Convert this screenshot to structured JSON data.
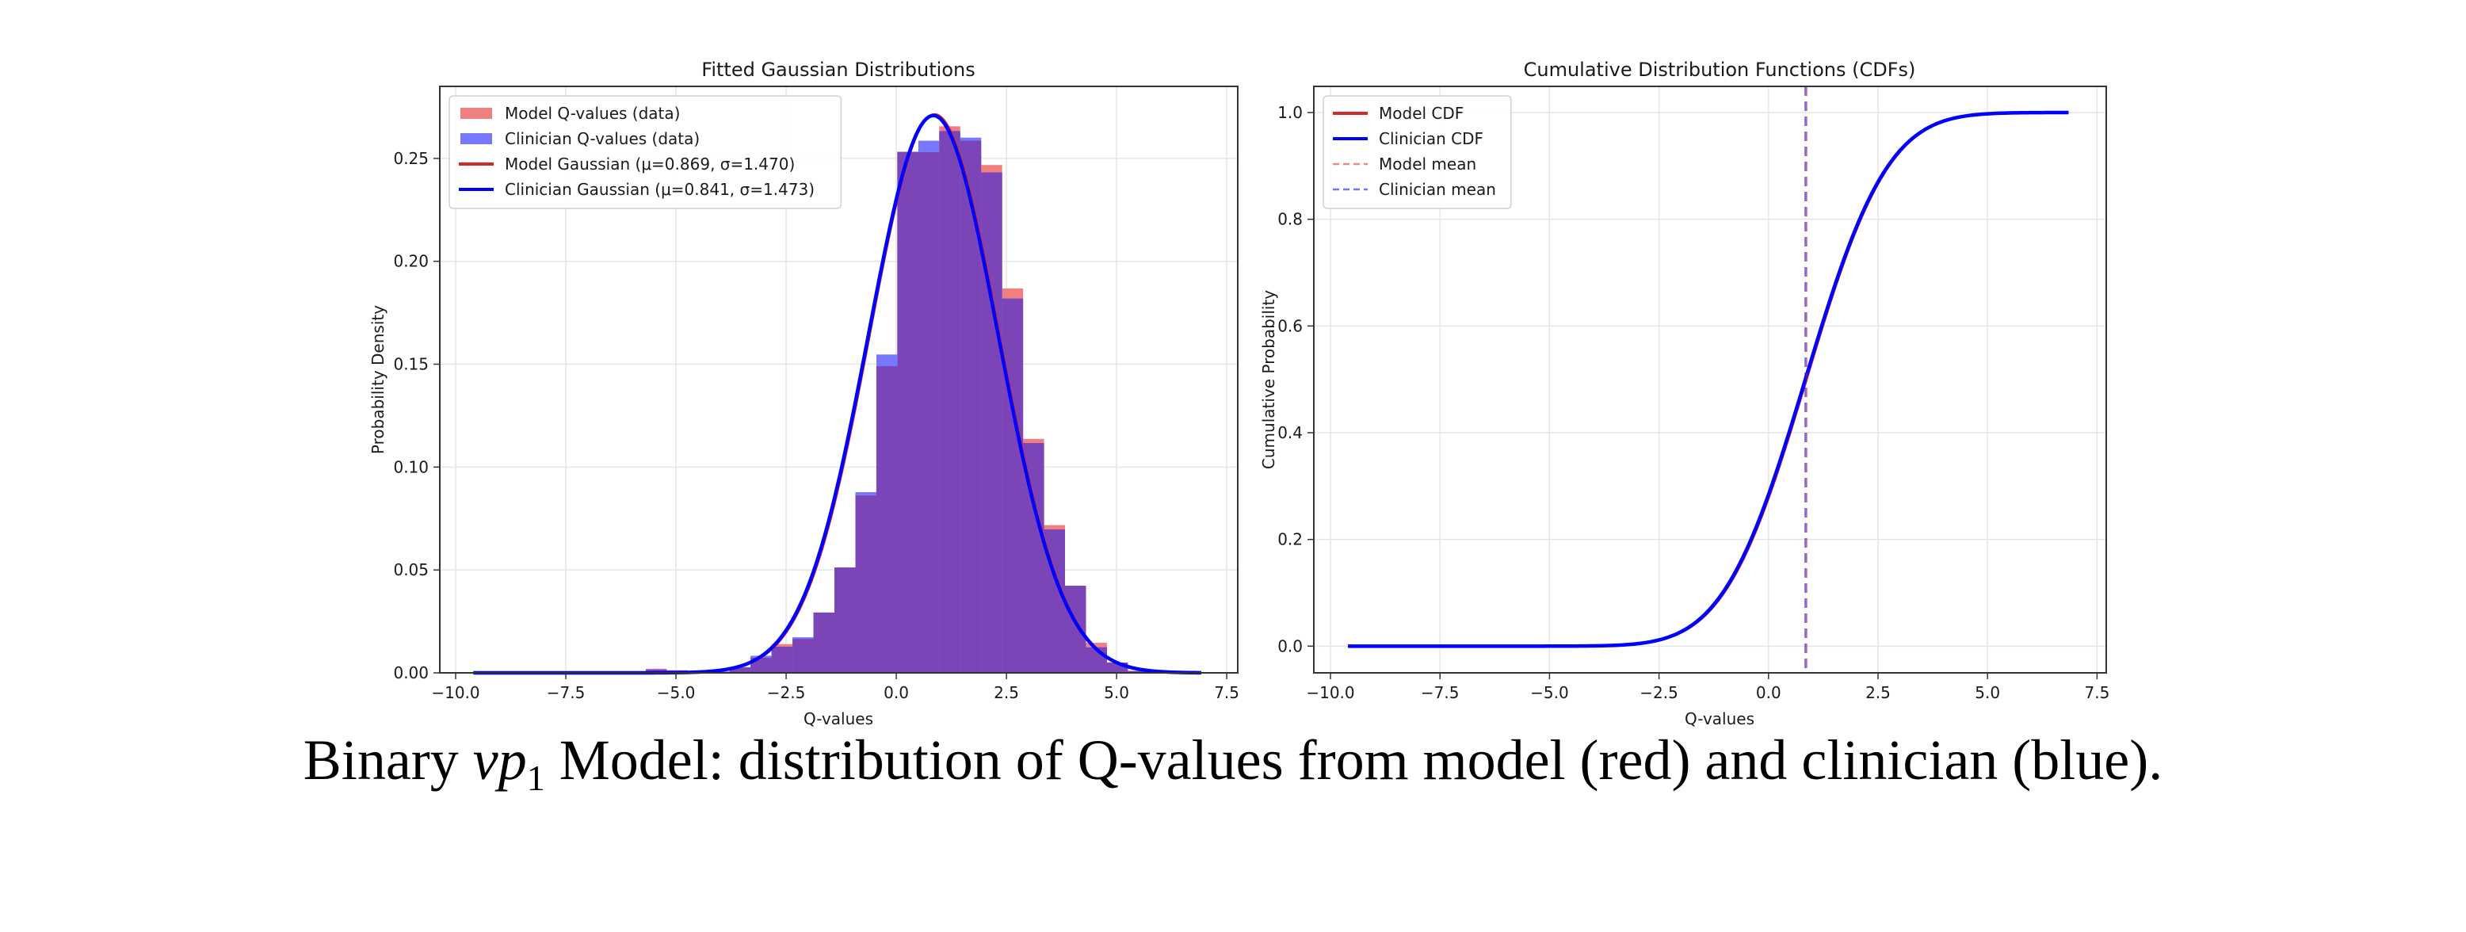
{
  "caption": {
    "prefix": "Binary ",
    "math_var": "vp",
    "math_sub": "1",
    "suffix": " Model: distribution of Q-values from model (red) and clinician (blue)."
  },
  "colors": {
    "model": "#d62728",
    "clinician": "#0000ff",
    "model_fill": "#f08080",
    "clinician_fill": "#7777ff",
    "overlap_fill": "#7b45b8",
    "mean_line": "#8e44ad",
    "grid": "#e6e6e6"
  },
  "chart_data": [
    {
      "type": "bar",
      "title": "Fitted Gaussian Distributions",
      "xlabel": "Q-values",
      "ylabel": "Probability Density",
      "xlim": [
        -10.36,
        7.75
      ],
      "ylim": [
        0,
        0.285
      ],
      "xticks": [
        -10.0,
        -7.5,
        -5.0,
        -2.5,
        0.0,
        2.5,
        5.0,
        7.5
      ],
      "xtick_labels": [
        "−10.0",
        "−7.5",
        "−5.0",
        "−2.5",
        "0.0",
        "2.5",
        "5.0",
        "7.5"
      ],
      "yticks": [
        0.0,
        0.05,
        0.1,
        0.15,
        0.2,
        0.25
      ],
      "ytick_labels": [
        "0.00",
        "0.05",
        "0.10",
        "0.15",
        "0.20",
        "0.25"
      ],
      "grid": true,
      "legend_position": "top-left",
      "legend": [
        {
          "label": "Model Q-values (data)",
          "kind": "patch",
          "series": "model"
        },
        {
          "label": "Clinician Q-values (data)",
          "kind": "patch",
          "series": "clinician"
        },
        {
          "label": "Model Gaussian (μ=0.869, σ=1.470)",
          "kind": "line",
          "series": "model"
        },
        {
          "label": "Clinician Gaussian (μ=0.841, σ=1.473)",
          "kind": "line",
          "series": "clinician"
        }
      ],
      "histogram": {
        "bin_start": -9.49,
        "bin_width": 0.4757,
        "series": [
          {
            "name": "Model Q-values (data)",
            "key": "model",
            "values": [
              0.0003,
              0.0002,
              0.0002,
              0.0002,
              0.0002,
              0.0003,
              0.0003,
              0.0005,
              0.002,
              0.0013,
              0.0008,
              0.0006,
              0.0026,
              0.0073,
              0.014,
              0.0165,
              0.0293,
              0.0512,
              0.0862,
              0.149,
              0.2532,
              0.253,
              0.2656,
              0.2586,
              0.2468,
              0.1868,
              0.1137,
              0.0718,
              0.0423,
              0.0146,
              0.005,
              0.0009,
              0.0003,
              0.0001,
              0.0001
            ]
          },
          {
            "name": "Clinician Q-values (data)",
            "key": "clinician",
            "values": [
              0.0003,
              0.0002,
              0.0002,
              0.0002,
              0.0002,
              0.0003,
              0.0003,
              0.0005,
              0.0016,
              0.0011,
              0.0008,
              0.0006,
              0.0028,
              0.0083,
              0.0127,
              0.0173,
              0.0293,
              0.0512,
              0.0878,
              0.1547,
              0.2532,
              0.2586,
              0.2633,
              0.2601,
              0.2432,
              0.1819,
              0.1117,
              0.0697,
              0.0423,
              0.0124,
              0.005,
              0.0009,
              0.0003,
              0.0001,
              0.0001
            ]
          }
        ]
      },
      "gaussians": [
        {
          "name": "Model Gaussian",
          "key": "model",
          "mu": 0.869,
          "sigma": 1.47,
          "x_range": [
            -9.6,
            6.92
          ]
        },
        {
          "name": "Clinician Gaussian",
          "key": "clinician",
          "mu": 0.841,
          "sigma": 1.473,
          "x_range": [
            -9.6,
            6.92
          ]
        }
      ]
    },
    {
      "type": "line",
      "title": "Cumulative Distribution Functions (CDFs)",
      "xlabel": "Q-values",
      "ylabel": "Cumulative Probability",
      "xlim": [
        -10.38,
        7.71
      ],
      "ylim": [
        -0.05,
        1.049
      ],
      "xticks": [
        -10.0,
        -7.5,
        -5.0,
        -2.5,
        0.0,
        2.5,
        5.0,
        7.5
      ],
      "xtick_labels": [
        "−10.0",
        "−7.5",
        "−5.0",
        "−2.5",
        "0.0",
        "2.5",
        "5.0",
        "7.5"
      ],
      "yticks": [
        0.0,
        0.2,
        0.4,
        0.6,
        0.8,
        1.0
      ],
      "ytick_labels": [
        "0.0",
        "0.2",
        "0.4",
        "0.6",
        "0.8",
        "1.0"
      ],
      "grid": true,
      "legend_position": "top-left",
      "legend": [
        {
          "label": "Model CDF",
          "kind": "line",
          "series": "model"
        },
        {
          "label": "Clinician CDF",
          "kind": "line",
          "series": "clinician"
        },
        {
          "label": "Model mean",
          "kind": "dashed",
          "series": "model"
        },
        {
          "label": "Clinician mean",
          "kind": "dashed",
          "series": "clinician"
        }
      ],
      "series": [
        {
          "name": "Model CDF",
          "key": "model",
          "mu": 0.869,
          "sigma": 1.47,
          "x_range": [
            -9.6,
            6.85
          ]
        },
        {
          "name": "Clinician CDF",
          "key": "clinician",
          "mu": 0.841,
          "sigma": 1.473,
          "x_range": [
            -9.6,
            6.85
          ]
        }
      ],
      "vlines": [
        {
          "name": "Model mean",
          "key": "model",
          "x": 0.869
        },
        {
          "name": "Clinician mean",
          "key": "clinician",
          "x": 0.841
        }
      ]
    }
  ]
}
